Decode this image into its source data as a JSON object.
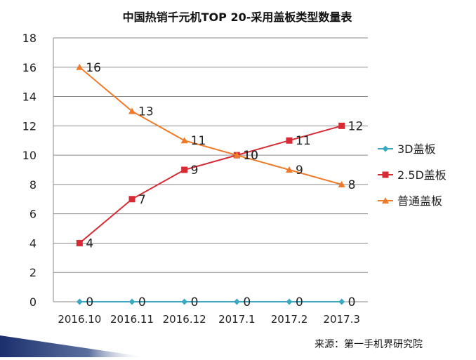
{
  "chart_data": {
    "type": "line",
    "title": "中国热销千元机TOP  20-采用盖板类型数量表",
    "categories": [
      "2016.10",
      "2016.11",
      "2016.12",
      "2017.1",
      "2017.2",
      "2017.3"
    ],
    "ylim": [
      0,
      18
    ],
    "yticks": [
      0,
      2,
      4,
      6,
      8,
      10,
      12,
      14,
      16,
      18
    ],
    "grid": true,
    "legend_position": "right",
    "series": [
      {
        "name": "3D盖板",
        "values": [
          0,
          0,
          0,
          0,
          0,
          0
        ],
        "color": "#3aa8c1",
        "marker": "diamond"
      },
      {
        "name": "2.5D盖板",
        "values": [
          4,
          7,
          9,
          10,
          11,
          12
        ],
        "color": "#d62a34",
        "marker": "square"
      },
      {
        "name": "普通盖板",
        "values": [
          16,
          13,
          11,
          10,
          9,
          8
        ],
        "color": "#ee7a2a",
        "marker": "triangle"
      }
    ]
  },
  "source_text": "来源：第一手机界研究院",
  "accent": {
    "corner_stripe": "#1c2f6e"
  }
}
